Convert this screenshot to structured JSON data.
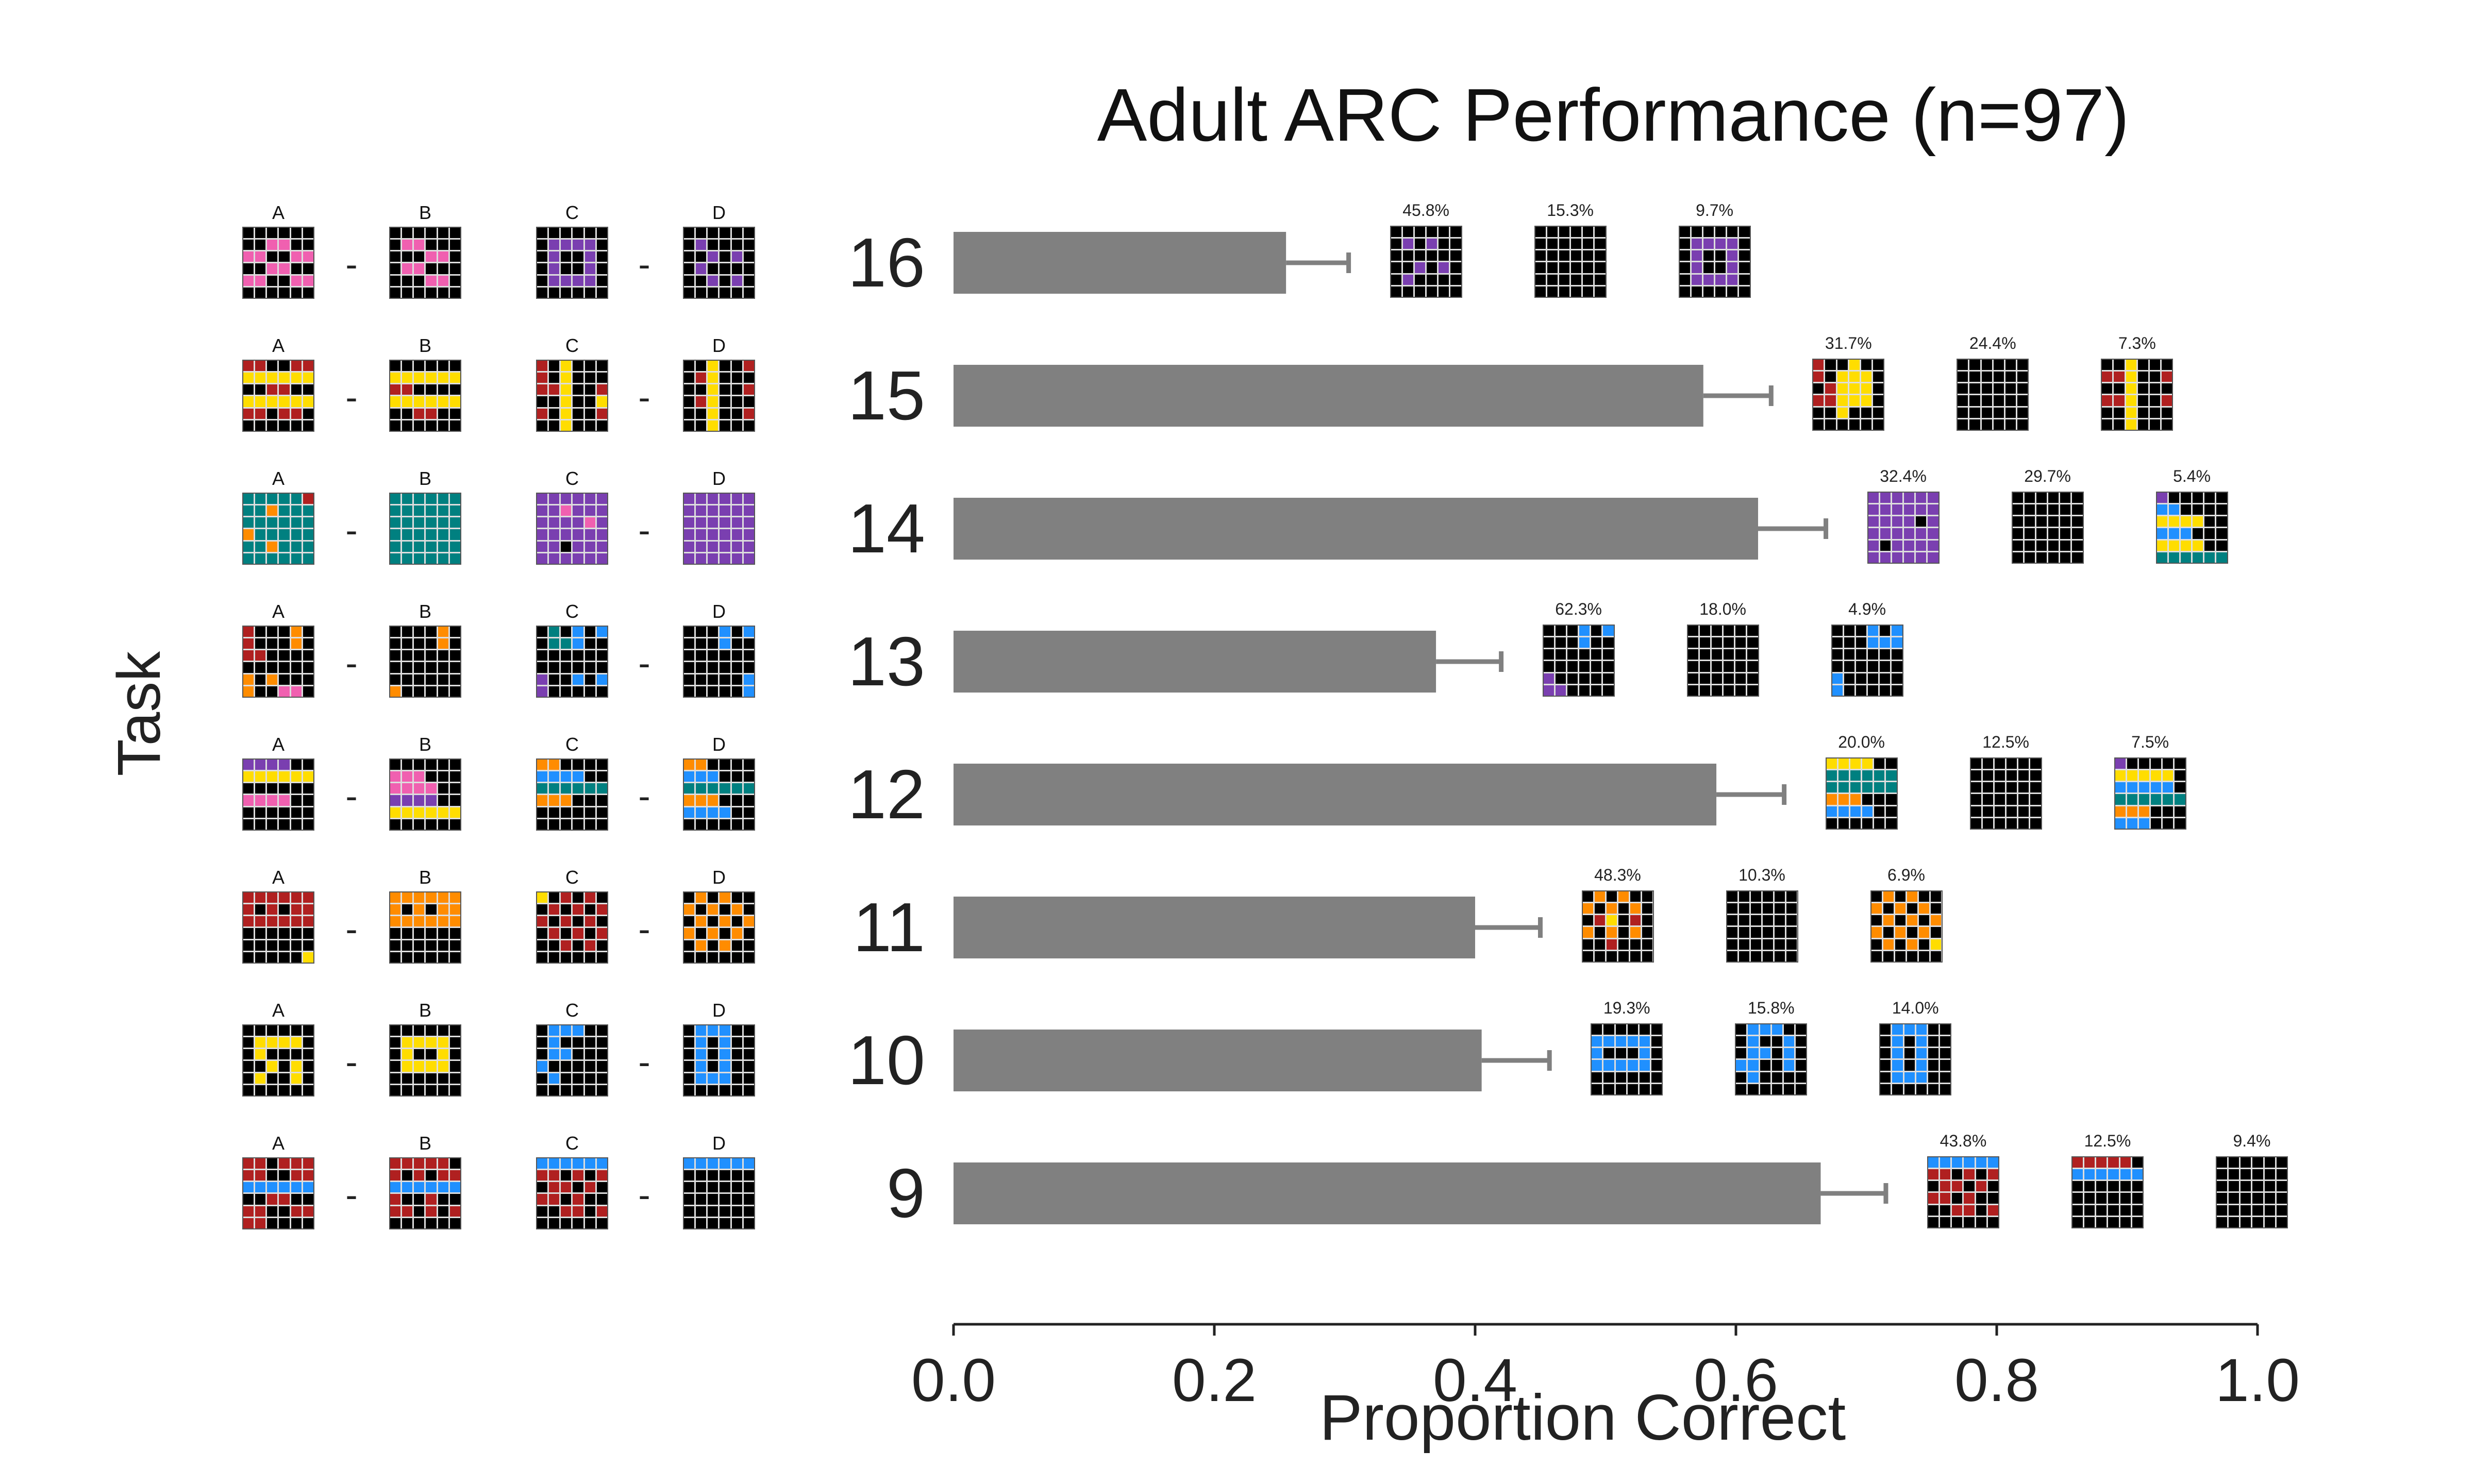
{
  "title": "Adult ARC Performance (n=97)",
  "ylabel": "Task",
  "xlabel": "Proportion Correct",
  "grid_column_labels": [
    "A",
    "B",
    "C",
    "D"
  ],
  "palette": {
    "0": "#000000",
    "1": "#f060b0",
    "2": "#7a3fb0",
    "3": "#b02020",
    "4": "#ffdd00",
    "5": "#008080",
    "6": "#ff8c00",
    "7": "#2090ff"
  },
  "colors": {
    "bar": "#808080",
    "error": "#808080",
    "axis": "#222222"
  },
  "chart_data": {
    "type": "bar",
    "orientation": "horizontal",
    "title": "Adult ARC Performance (n=97)",
    "xlabel": "Proportion Correct",
    "ylabel": "Task",
    "xlim": [
      0.0,
      1.0
    ],
    "xticks": [
      "0.0",
      "0.2",
      "0.4",
      "0.6",
      "0.8",
      "1.0"
    ],
    "categories": [
      "16",
      "15",
      "14",
      "13",
      "12",
      "11",
      "10",
      "9"
    ],
    "values": [
      0.255,
      0.575,
      0.617,
      0.37,
      0.585,
      0.4,
      0.405,
      0.665
    ],
    "errors": [
      0.048,
      0.052,
      0.052,
      0.05,
      0.052,
      0.05,
      0.052,
      0.05
    ],
    "error_response_percentages": [
      [
        "45.8%",
        "15.3%",
        "9.7%"
      ],
      [
        "31.7%",
        "24.4%",
        "7.3%"
      ],
      [
        "32.4%",
        "29.7%",
        "5.4%"
      ],
      [
        "62.3%",
        "18.0%",
        "4.9%"
      ],
      [
        "20.0%",
        "12.5%",
        "7.5%"
      ],
      [
        "48.3%",
        "10.3%",
        "6.9%"
      ],
      [
        "19.3%",
        "15.8%",
        "14.0%"
      ],
      [
        "43.8%",
        "12.5%",
        "9.4%"
      ]
    ],
    "grid": false,
    "legend": "none"
  },
  "task_grids": [
    {
      "A": [
        "000000",
        "001100",
        "110011",
        "001100",
        "110011",
        "000000"
      ],
      "B": [
        "000000",
        "011000",
        "000110",
        "011000",
        "000110",
        "000000"
      ],
      "C": [
        "000000",
        "022220",
        "020020",
        "020020",
        "022220",
        "000000"
      ],
      "D": [
        "000000",
        "020000",
        "002020",
        "020000",
        "002020",
        "000000"
      ],
      "errors": [
        [
          "000000",
          "020200",
          "000000",
          "002020",
          "020000",
          "000000"
        ],
        [
          "000000",
          "000000",
          "000000",
          "000000",
          "000000",
          "000000"
        ],
        [
          "000000",
          "022220",
          "020020",
          "020020",
          "022220",
          "000000"
        ]
      ]
    },
    {
      "A": [
        "330033",
        "444444",
        "003300",
        "444444",
        "330330",
        "000000"
      ],
      "B": [
        "000000",
        "444444",
        "330000",
        "444444",
        "003300",
        "000000"
      ],
      "C": [
        "304000",
        "304000",
        "334003",
        "004004",
        "304003",
        "004000"
      ],
      "D": [
        "004003",
        "034000",
        "004003",
        "034000",
        "004003",
        "004000"
      ],
      "errors": [
        [
          "300400",
          "304440",
          "034440",
          "334440",
          "004000",
          "000000"
        ],
        [
          "000000",
          "000000",
          "000000",
          "000000",
          "000000",
          "000000"
        ],
        [
          "004000",
          "334003",
          "004000",
          "334003",
          "004000",
          "004000"
        ]
      ]
    },
    {
      "A": [
        "555553",
        "556555",
        "555555",
        "655555",
        "556555",
        "555555"
      ],
      "B": [
        "555555",
        "555555",
        "555555",
        "555555",
        "555555",
        "555555"
      ],
      "C": [
        "222222",
        "221222",
        "222212",
        "222222",
        "220222",
        "222222"
      ],
      "D": [
        "222222",
        "222222",
        "222222",
        "222222",
        "222222",
        "222222"
      ],
      "errors": [
        [
          "222222",
          "222222",
          "222202",
          "222222",
          "202222",
          "222222"
        ],
        [
          "000000",
          "000000",
          "000000",
          "000000",
          "000000",
          "000000"
        ],
        [
          "200000",
          "770000",
          "444400",
          "777000",
          "444400",
          "555555"
        ]
      ]
    },
    {
      "A": [
        "300060",
        "300060",
        "330000",
        "000000",
        "606000",
        "600110"
      ],
      "B": [
        "000060",
        "000060",
        "000000",
        "000000",
        "000000",
        "600000"
      ],
      "C": [
        "050707",
        "055700",
        "000000",
        "000000",
        "200707",
        "200000"
      ],
      "D": [
        "000707",
        "000700",
        "000000",
        "000000",
        "000007",
        "000007"
      ],
      "errors": [
        [
          "000707",
          "000700",
          "000000",
          "000000",
          "200000",
          "220000"
        ],
        [
          "000000",
          "000000",
          "000000",
          "000000",
          "000000",
          "000000"
        ],
        [
          "000707",
          "000777",
          "000000",
          "000000",
          "700000",
          "700000"
        ]
      ]
    },
    {
      "A": [
        "222200",
        "444444",
        "000000",
        "111100",
        "000000",
        "000000"
      ],
      "B": [
        "000000",
        "111000",
        "111100",
        "222200",
        "444444",
        "000000"
      ],
      "C": [
        "660000",
        "777700",
        "555555",
        "666000",
        "000000",
        "000000"
      ],
      "D": [
        "660000",
        "777000",
        "555555",
        "666000",
        "777700",
        "000000"
      ],
      "errors": [
        [
          "444400",
          "555555",
          "555555",
          "666000",
          "777700",
          "000000"
        ],
        [
          "000000",
          "000000",
          "000000",
          "000000",
          "000000",
          "000000"
        ],
        [
          "200000",
          "444440",
          "777770",
          "555555",
          "666000",
          "777000"
        ]
      ]
    },
    {
      "A": [
        "333333",
        "303033",
        "333333",
        "000000",
        "000000",
        "000004"
      ],
      "B": [
        "666666",
        "606066",
        "666666",
        "000000",
        "000000",
        "000000"
      ],
      "C": [
        "403030",
        "030303",
        "303030",
        "030303",
        "003030",
        "000000"
      ],
      "D": [
        "060600",
        "606060",
        "060606",
        "606060",
        "060600",
        "000000"
      ],
      "errors": [
        [
          "060600",
          "606060",
          "034030",
          "606060",
          "003000",
          "000000"
        ],
        [
          "000000",
          "000000",
          "000000",
          "000000",
          "000000",
          "000000"
        ],
        [
          "060600",
          "606060",
          "060606",
          "606060",
          "060604",
          "000000"
        ]
      ]
    },
    {
      "A": [
        "000000",
        "044440",
        "040000",
        "004040",
        "040040",
        "000000"
      ],
      "B": [
        "000000",
        "044440",
        "040040",
        "044440",
        "000000",
        "000000"
      ],
      "C": [
        "077700",
        "070000",
        "077000",
        "700000",
        "070000",
        "000000"
      ],
      "D": [
        "077700",
        "070700",
        "070700",
        "070700",
        "077700",
        "000000"
      ],
      "errors": [
        [
          "000000",
          "777770",
          "700070",
          "777770",
          "000000",
          "000000"
        ],
        [
          "077700",
          "070070",
          "077070",
          "770070",
          "070000",
          "000000"
        ],
        [
          "077700",
          "070700",
          "070700",
          "070700",
          "077700",
          "000000"
        ]
      ]
    },
    {
      "A": [
        "330333",
        "330033",
        "777777",
        "003300",
        "330033",
        "330000"
      ],
      "B": [
        "333330",
        "303033",
        "777777",
        "300300",
        "330303",
        "000000"
      ],
      "C": [
        "777777",
        "330303",
        "033030",
        "330300",
        "003303",
        "000000"
      ],
      "D": [
        "777777",
        "000000",
        "000000",
        "000000",
        "000000",
        "000000"
      ],
      "errors": [
        [
          "777777",
          "330303",
          "033030",
          "330300",
          "003303",
          "000000"
        ],
        [
          "333330",
          "777777",
          "000000",
          "000000",
          "000000",
          "000000"
        ],
        [
          "000000",
          "000000",
          "000000",
          "000000",
          "000000",
          "000000"
        ]
      ]
    }
  ]
}
